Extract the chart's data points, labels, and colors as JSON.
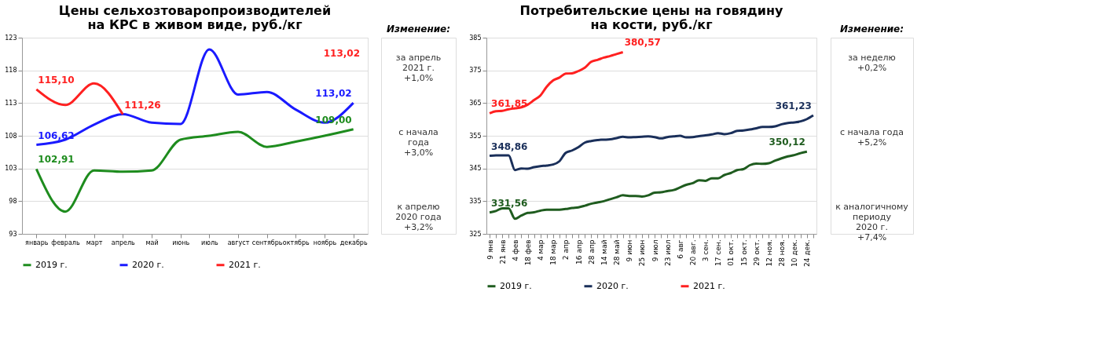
{
  "chart_data": [
    {
      "type": "line",
      "title": "Цены сельхозтоваропроизводителей на КРС в живом виде, руб./кг",
      "categories": [
        "январь",
        "февраль",
        "март",
        "апрель",
        "май",
        "июнь",
        "июль",
        "август",
        "сентябрь",
        "октябрь",
        "ноябрь",
        "декабрь"
      ],
      "ylim": [
        93,
        123
      ],
      "yticks": [
        93,
        98,
        103,
        108,
        113,
        118,
        123
      ],
      "grid": "y",
      "legend": "bottom",
      "series": [
        {
          "name": "2019 г.",
          "color": "#1e8c1e",
          "values": [
            102.91,
            96.4,
            102.7,
            102.5,
            102.7,
            107.4,
            108.0,
            108.6,
            106.3,
            107.1,
            108.0,
            109.0
          ],
          "value_labels": [
            "102,91",
            null,
            null,
            null,
            null,
            null,
            null,
            null,
            null,
            null,
            null,
            "109,00"
          ]
        },
        {
          "name": "2020 г.",
          "color": "#1a1aff",
          "values": [
            106.62,
            107.4,
            109.7,
            111.3,
            110.0,
            109.8,
            121.2,
            114.3,
            114.7,
            112.0,
            110.0,
            113.02
          ],
          "value_labels": [
            "106,62",
            null,
            null,
            null,
            null,
            null,
            null,
            null,
            null,
            null,
            null,
            "113,02"
          ]
        },
        {
          "name": "2021 г.",
          "color": "#ff2020",
          "values": [
            115.1,
            112.7,
            116.0,
            111.26,
            null,
            null,
            null,
            null,
            null,
            null,
            null,
            null
          ],
          "value_labels": [
            "115,10",
            null,
            null,
            "111,26",
            null,
            null,
            null,
            null,
            null,
            null,
            null,
            null
          ]
        }
      ],
      "annotations": [
        "113,02"
      ]
    },
    {
      "type": "other",
      "title": "Изменение:",
      "annotations": [
        "за апрель\n2021 г.\n+1,0%",
        "с начала\nгода\n+3,0%",
        "к апрелю\n2020 года\n+3,2%"
      ]
    },
    {
      "type": "line",
      "title": "Потребительские цены на говядину на кости, руб./кг",
      "categories": [
        "9 янв",
        null,
        "21 янв",
        null,
        "4 фев",
        null,
        "18 фев",
        null,
        "4 мар",
        null,
        "18 мар",
        null,
        "2 апр",
        null,
        "16 апр",
        null,
        "28 апр",
        null,
        "14 май",
        null,
        "28 май",
        null,
        "9 июн",
        null,
        "25 июн",
        null,
        "9 июл",
        null,
        "23 июл",
        null,
        "6 авг",
        null,
        "20 авг.",
        null,
        "3 сен.",
        null,
        "17 сен.",
        null,
        "01 окт.",
        null,
        "15 окт.",
        null,
        "29 окт.",
        null,
        "12 ноя.",
        null,
        "28 ноя.",
        null,
        "10 дек.",
        null,
        "24 дек.",
        null
      ],
      "ylim": [
        325,
        385
      ],
      "yticks": [
        325,
        335,
        345,
        355,
        365,
        375,
        385
      ],
      "grid": "y",
      "legend": "bottom",
      "series": [
        {
          "name": "2019 г.",
          "color": "#1f5c1f",
          "values": [
            331.56,
            332.0,
            332.8,
            332.8,
            329.6,
            330.6,
            331.4,
            331.6,
            332.1,
            332.4,
            332.4,
            332.4,
            332.6,
            332.9,
            333.1,
            333.6,
            334.2,
            334.6,
            335.0,
            335.6,
            336.2,
            336.8,
            336.6,
            336.6,
            336.4,
            336.8,
            337.6,
            337.7,
            338.1,
            338.4,
            339.2,
            340.0,
            340.5,
            341.4,
            341.2,
            342.0,
            342.0,
            343.0,
            343.6,
            344.5,
            344.8,
            346.0,
            346.5,
            346.4,
            346.6,
            347.4,
            348.1,
            348.7,
            349.1,
            349.7,
            350.12,
            null
          ],
          "value_labels": [
            "331,56",
            null,
            null,
            null,
            null,
            null,
            null,
            null,
            null,
            null,
            null,
            null,
            null,
            null,
            null,
            null,
            null,
            null,
            null,
            null,
            null,
            null,
            null,
            null,
            null,
            null,
            null,
            null,
            null,
            null,
            null,
            null,
            null,
            null,
            null,
            null,
            null,
            null,
            null,
            null,
            null,
            null,
            null,
            null,
            null,
            null,
            null,
            null,
            null,
            null,
            "350,12",
            null
          ]
        },
        {
          "name": "2020 г.",
          "color": "#1a2f5a",
          "values": [
            348.86,
            349.0,
            349.0,
            349.0,
            344.5,
            345.0,
            344.9,
            345.4,
            345.7,
            345.9,
            346.2,
            347.2,
            349.8,
            350.5,
            351.5,
            352.9,
            353.4,
            353.7,
            353.8,
            353.9,
            354.3,
            354.7,
            354.5,
            354.6,
            354.7,
            354.8,
            354.6,
            354.2,
            354.6,
            354.8,
            355.0,
            354.5,
            354.6,
            354.9,
            355.1,
            355.4,
            355.8,
            355.5,
            355.8,
            356.5,
            356.6,
            356.9,
            357.3,
            357.7,
            357.7,
            357.9,
            358.5,
            358.9,
            359.1,
            359.4,
            360.1,
            361.23
          ],
          "value_labels": [
            "348,86",
            null,
            null,
            null,
            null,
            null,
            null,
            null,
            null,
            null,
            null,
            null,
            null,
            null,
            null,
            null,
            null,
            null,
            null,
            null,
            null,
            null,
            null,
            null,
            null,
            null,
            null,
            null,
            null,
            null,
            null,
            null,
            null,
            null,
            null,
            null,
            null,
            null,
            null,
            null,
            null,
            null,
            null,
            null,
            null,
            null,
            null,
            null,
            null,
            null,
            null,
            "361,23"
          ]
        },
        {
          "name": "2021 г.",
          "color": "#ff2020",
          "values": [
            361.85,
            362.5,
            362.6,
            363.1,
            363.4,
            363.7,
            364.5,
            365.9,
            367.3,
            370.0,
            371.9,
            372.8,
            374.0,
            374.1,
            374.8,
            375.8,
            377.6,
            378.2,
            378.9,
            379.4,
            380.0,
            380.57,
            null,
            null,
            null,
            null,
            null,
            null,
            null,
            null,
            null,
            null,
            null,
            null,
            null,
            null,
            null,
            null,
            null,
            null,
            null,
            null,
            null,
            null,
            null,
            null,
            null,
            null,
            null,
            null,
            null,
            null
          ],
          "value_labels": [
            "361,85",
            null,
            null,
            null,
            null,
            null,
            null,
            null,
            null,
            null,
            null,
            null,
            null,
            null,
            null,
            null,
            null,
            null,
            null,
            null,
            null,
            "380,57",
            null,
            null,
            null,
            null,
            null,
            null,
            null,
            null,
            null,
            null,
            null,
            null,
            null,
            null,
            null,
            null,
            null,
            null,
            null,
            null,
            null,
            null,
            null,
            null,
            null,
            null,
            null,
            null,
            null,
            null
          ]
        }
      ]
    },
    {
      "type": "other",
      "title": "Изменение:",
      "annotations": [
        "за неделю\n+0,2%",
        "с начала года\n+5,2%",
        "к аналогичному\nпериоду\n2020 г.\n+7,4%"
      ]
    }
  ]
}
